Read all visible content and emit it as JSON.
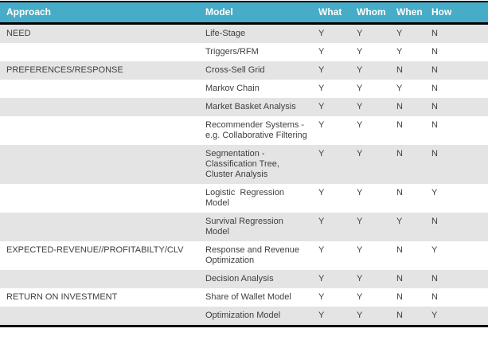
{
  "table": {
    "columns": [
      "Approach",
      "Model",
      "What",
      "Whom",
      "When",
      "How"
    ],
    "rows": [
      {
        "approach": "NEED",
        "model": "Life-Stage",
        "what": "Y",
        "whom": "Y",
        "when": "Y",
        "how": "N"
      },
      {
        "approach": "",
        "model": "Triggers/RFM",
        "what": "Y",
        "whom": "Y",
        "when": "Y",
        "how": "N"
      },
      {
        "approach": "PREFERENCES/RESPONSE",
        "model": "Cross-Sell Grid",
        "what": "Y",
        "whom": "Y",
        "when": "N",
        "how": "N"
      },
      {
        "approach": "",
        "model": "Markov Chain",
        "what": "Y",
        "whom": "Y",
        "when": "Y",
        "how": "N"
      },
      {
        "approach": "",
        "model": "Market Basket Analysis",
        "what": "Y",
        "whom": "Y",
        "when": "N",
        "how": "N"
      },
      {
        "approach": "",
        "model": "Recommender Systems - e.g. Collaborative Filtering",
        "what": "Y",
        "whom": "Y",
        "when": "N",
        "how": "N"
      },
      {
        "approach": "",
        "model": "Segmentation - Classification Tree, Cluster Analysis",
        "what": "Y",
        "whom": "Y",
        "when": "N",
        "how": "N"
      },
      {
        "approach": "",
        "model": "Logistic  Regression Model",
        "what": "Y",
        "whom": "Y",
        "when": "N",
        "how": "Y"
      },
      {
        "approach": "",
        "model": "Survival Regression Model",
        "what": "Y",
        "whom": "Y",
        "when": "Y",
        "how": "N"
      },
      {
        "approach": "EXPECTED-REVENUE//PROFITABILTY/CLV",
        "model": "Response and Revenue Optimization",
        "what": "Y",
        "whom": "Y",
        "when": "N",
        "how": "Y"
      },
      {
        "approach": "",
        "model": "Decision Analysis",
        "what": "Y",
        "whom": "Y",
        "when": "N",
        "how": "N"
      },
      {
        "approach": "RETURN ON INVESTMENT",
        "model": "Share of Wallet Model",
        "what": "Y",
        "whom": "Y",
        "when": "N",
        "how": "N"
      },
      {
        "approach": "",
        "model": "Optimization Model",
        "what": "Y",
        "whom": "Y",
        "when": "N",
        "how": "Y"
      }
    ]
  },
  "colors": {
    "header_bg": "#47ACC7",
    "header_text": "#FFFFFF",
    "row_alt_bg": "#E4E4E4",
    "row_bg": "#FFFFFF",
    "border": "#000000",
    "body_text": "#3F3F3F"
  }
}
